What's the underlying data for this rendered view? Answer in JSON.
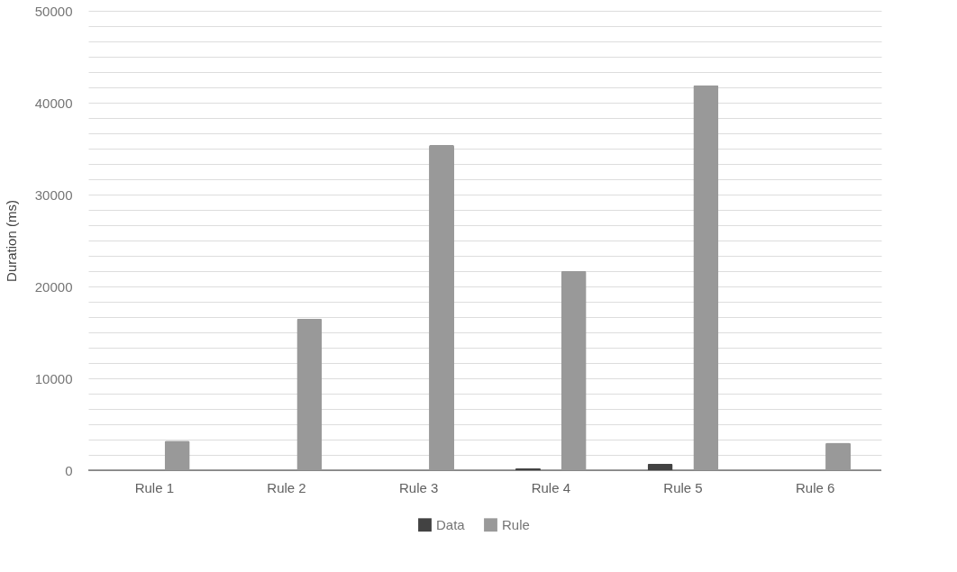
{
  "chart_data": {
    "type": "bar",
    "ylabel": "Duration (ms)",
    "categories": [
      "Rule 1",
      "Rule 2",
      "Rule 3",
      "Rule 4",
      "Rule 5",
      "Rule 6"
    ],
    "series": [
      {
        "name": "Data",
        "color": "#424242",
        "values": [
          0,
          0,
          0,
          200,
          700,
          0
        ]
      },
      {
        "name": "Rule",
        "color": "#999999",
        "values": [
          3200,
          16500,
          35400,
          21700,
          41900,
          3000
        ]
      }
    ],
    "ylim": [
      0,
      50000
    ],
    "yticks": [
      0,
      {
        "value": 1667,
        "label": null
      },
      {
        "value": 3333,
        "label": null
      },
      {
        "value": 5000,
        "label": null
      },
      {
        "value": 6667,
        "label": null
      },
      {
        "value": 8333,
        "label": null
      },
      10000,
      {
        "value": 11667,
        "label": null
      },
      {
        "value": 13333,
        "label": null
      },
      {
        "value": 15000,
        "label": null
      },
      {
        "value": 16667,
        "label": null
      },
      {
        "value": 18333,
        "label": null
      },
      20000,
      {
        "value": 21667,
        "label": null
      },
      {
        "value": 23333,
        "label": null
      },
      {
        "value": 25000,
        "label": null
      },
      {
        "value": 26667,
        "label": null
      },
      {
        "value": 28333,
        "label": null
      },
      30000,
      {
        "value": 31667,
        "label": null
      },
      {
        "value": 33333,
        "label": null
      },
      {
        "value": 35000,
        "label": null
      },
      {
        "value": 36667,
        "label": null
      },
      {
        "value": 38333,
        "label": null
      },
      40000,
      {
        "value": 41667,
        "label": null
      },
      {
        "value": 43333,
        "label": null
      },
      {
        "value": 45000,
        "label": null
      },
      {
        "value": 46667,
        "label": null
      },
      {
        "value": 48333,
        "label": null
      },
      50000
    ],
    "grid": "y",
    "legend": "bottom"
  }
}
